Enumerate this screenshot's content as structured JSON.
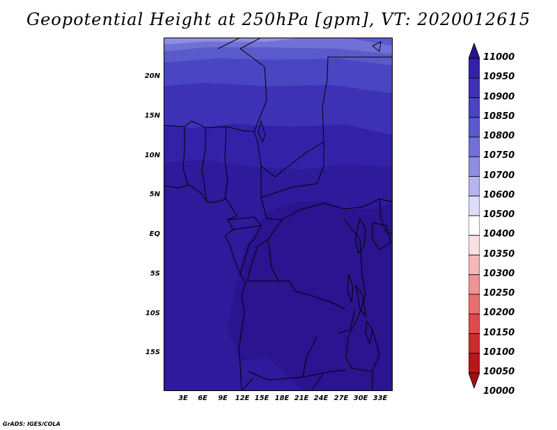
{
  "title": "Geopotential Height at 250hPa [gpm], VT: 2020012615",
  "credit": "GrADS: IGES/COLA",
  "map": {
    "y_ticks": [
      "20N",
      "15N",
      "10N",
      "5N",
      "EQ",
      "5S",
      "10S",
      "15S"
    ],
    "x_ticks": [
      "3E",
      "6E",
      "9E",
      "12E",
      "15E",
      "18E",
      "21E",
      "24E",
      "27E",
      "30E",
      "33E"
    ]
  },
  "colorbar": {
    "labels": [
      "11000",
      "10950",
      "10900",
      "10850",
      "10800",
      "10750",
      "10700",
      "10600",
      "10500",
      "10400",
      "10350",
      "10300",
      "10250",
      "10200",
      "10150",
      "10100",
      "10050",
      "10000"
    ],
    "colors": [
      "#2b148f",
      "#3322a8",
      "#3d32b5",
      "#4a45c2",
      "#5a5acc",
      "#7070d6",
      "#8e8ee2",
      "#b4b4ee",
      "#dcdcf8",
      "#ffffff",
      "#fce0e0",
      "#f5b8b8",
      "#ee9494",
      "#e67070",
      "#dc4c4c",
      "#cc2c2c",
      "#b81818",
      "#a01010"
    ]
  },
  "field": {
    "band_colors": [
      "#2b148f",
      "#2e1a9a",
      "#3322a8",
      "#3d32b5",
      "#4a45c2",
      "#5a5acc",
      "#7070d6",
      "#8e8ee2"
    ]
  }
}
